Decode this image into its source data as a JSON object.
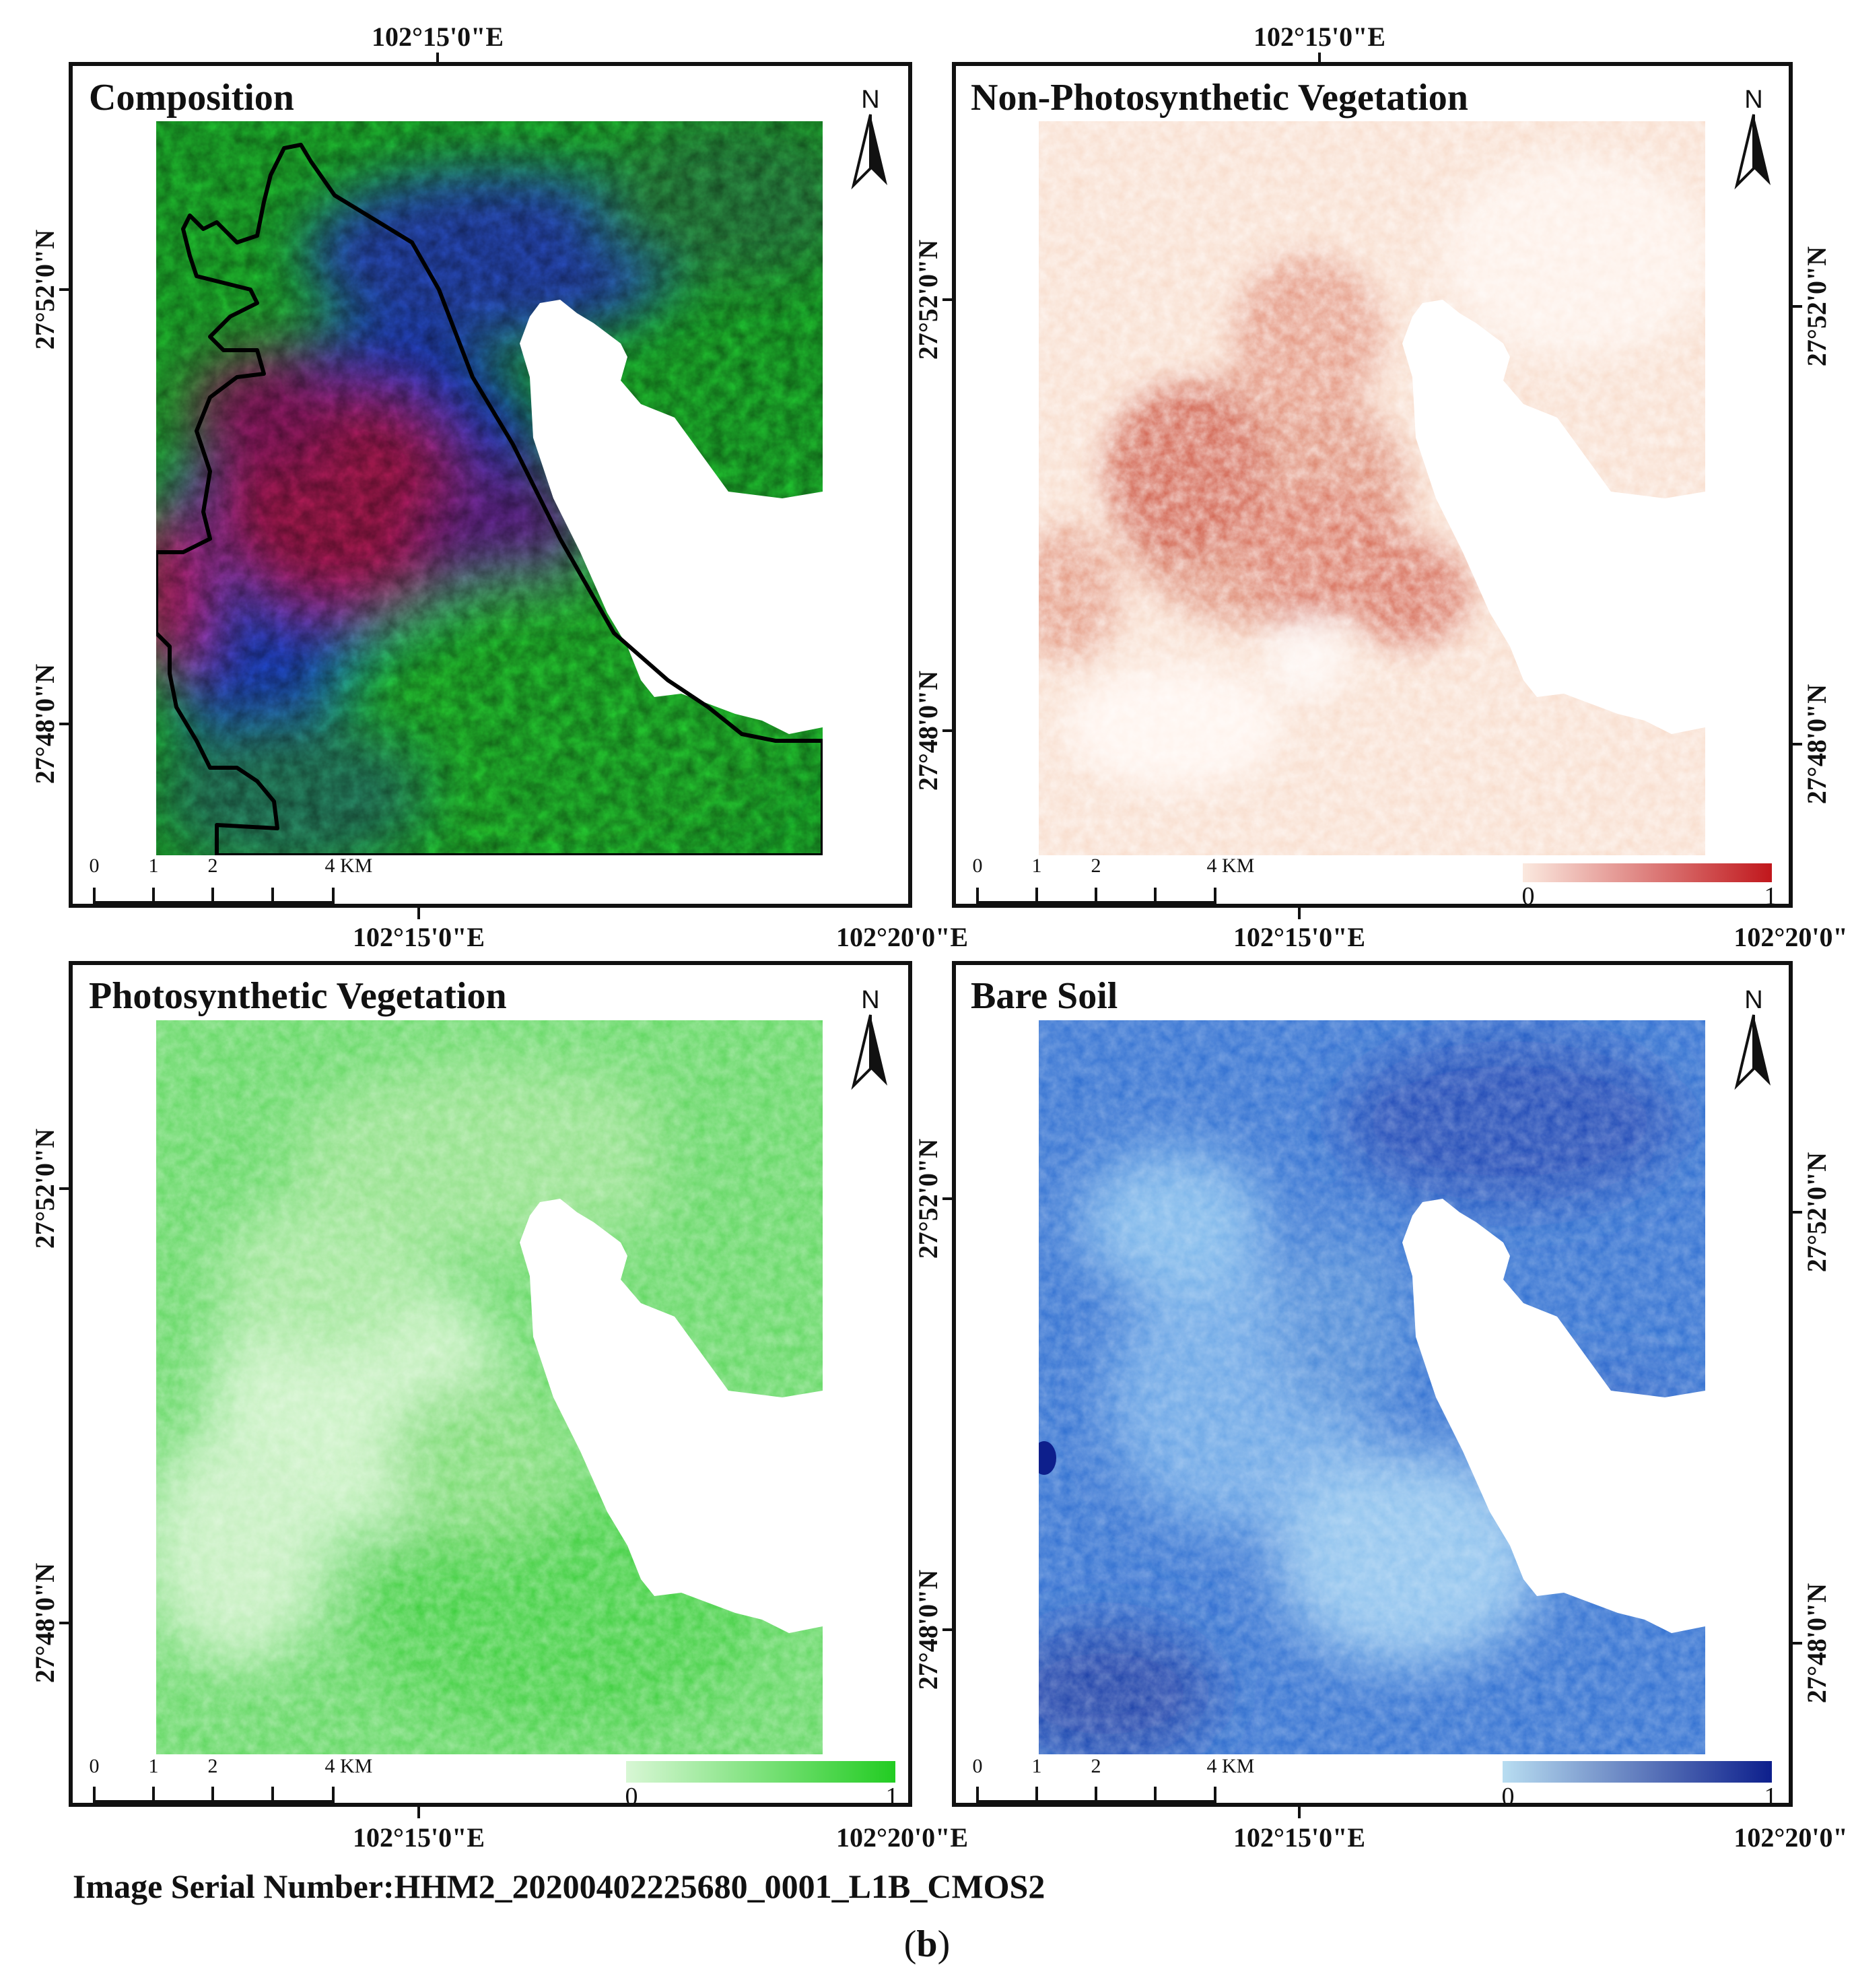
{
  "panels": [
    {
      "title": "Composition",
      "top_label": "102°15'0\"E",
      "bottom_labels": [
        "102°15'0\"E",
        "102°20'0\"E"
      ],
      "right_labels": [],
      "left_labels": [
        "27°52'0\"N",
        "27°48'0\"N"
      ],
      "north": "N",
      "scale_labels": [
        "0",
        "1",
        "2",
        "4",
        "KM"
      ],
      "legend": null
    },
    {
      "title": "Non-Photosynthetic Vegetation",
      "top_label": "102°15'0\"E",
      "bottom_labels": [
        "102°15'0\"E",
        "102°20'0\""
      ],
      "left_labels": [
        "27°52'0\"N",
        "27°48'0\"N"
      ],
      "right_labels": [
        "27°52'0\"N",
        "27°48'0\"N"
      ],
      "north": "N",
      "scale_labels": [
        "0",
        "1",
        "2",
        "4",
        "KM"
      ],
      "legend": {
        "min": "0",
        "max": "1",
        "color_low": "#fbe9df",
        "color_high": "#c0171c"
      }
    },
    {
      "title": "Photosynthetic Vegetation",
      "top_label": "",
      "bottom_labels": [
        "102°15'0\"E",
        "102°20'0\"E"
      ],
      "left_labels": [
        "27°52'0\"N",
        "27°48'0\"N"
      ],
      "right_labels": [],
      "north": "N",
      "scale_labels": [
        "0",
        "1",
        "2",
        "4",
        "KM"
      ],
      "legend": {
        "min": "0",
        "max": "1",
        "color_low": "#d8f7d5",
        "color_high": "#22cc22"
      }
    },
    {
      "title": "Bare Soil",
      "top_label": "",
      "bottom_labels": [
        "102°15'0\"E",
        "102°20'0\""
      ],
      "left_labels": [
        "27°52'0\"N",
        "27°48'0\"N"
      ],
      "right_labels": [
        "27°52'0\"N",
        "27°48'0\"N"
      ],
      "north": "N",
      "scale_labels": [
        "0",
        "1",
        "2",
        "4",
        "KM"
      ],
      "legend": {
        "min": "0",
        "max": "1",
        "color_low": "#b8ddf1",
        "color_high": "#0d1f8c"
      }
    }
  ],
  "colors": {
    "composition_green": "#22cc22",
    "composition_blue": "#1a3fd6",
    "composition_red": "#c0194a",
    "npv_base": "#f6d3c0",
    "npv_dark": "#c0392b",
    "pv_base": "#5fd75f",
    "pv_light": "#c9f2c3",
    "bs_base": "#2f6fd1",
    "bs_light": "#9cc8ee",
    "water": "#ffffff"
  },
  "caption": "Image Serial Number:HHM2_20200402225680_0001_L1B_CMOS2",
  "sublabel_open": "(",
  "sublabel_letter": "b",
  "sublabel_close": ")"
}
